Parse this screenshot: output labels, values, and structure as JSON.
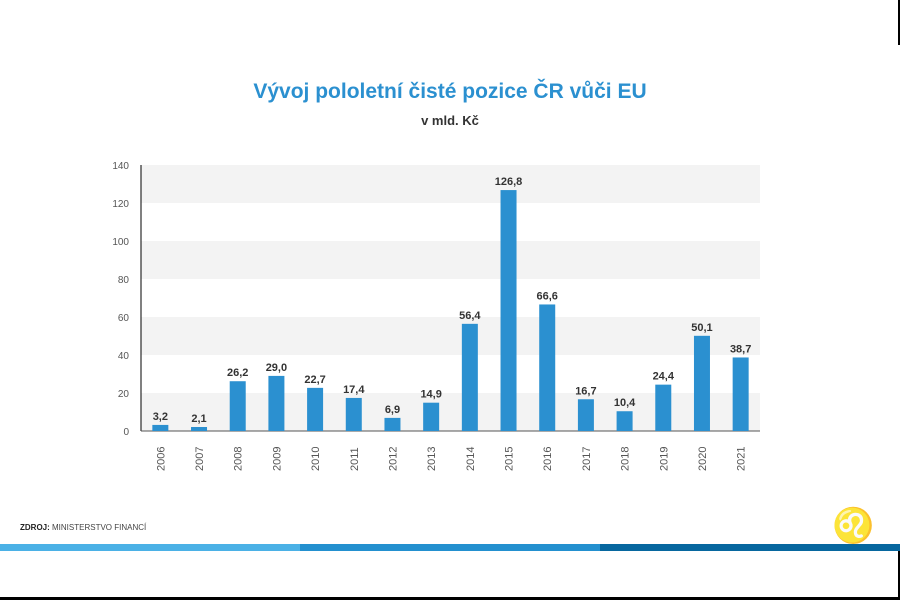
{
  "chart_data": {
    "type": "bar",
    "title": "Vývoj pololetní čisté pozice ČR vůči EU",
    "subtitle": "v mld. Kč",
    "categories": [
      "2006",
      "2007",
      "2008",
      "2009",
      "2010",
      "2011",
      "2012",
      "2013",
      "2014",
      "2015",
      "2016",
      "2017",
      "2018",
      "2019",
      "2020",
      "2021"
    ],
    "values": [
      3.2,
      2.1,
      26.2,
      29.0,
      22.7,
      17.4,
      6.9,
      14.9,
      56.4,
      126.8,
      66.6,
      16.7,
      10.4,
      24.4,
      50.1,
      38.7
    ],
    "labels": [
      "3,2",
      "2,1",
      "26,2",
      "29,0",
      "22,7",
      "17,4",
      "6,9",
      "14,9",
      "56,4",
      "126,8",
      "66,6",
      "16,7",
      "10,4",
      "24,4",
      "50,1",
      "38,7"
    ],
    "ylim": [
      0,
      140
    ],
    "yticks": [
      "0",
      "20",
      "40",
      "60",
      "80",
      "100",
      "120",
      "140"
    ],
    "grid": "alternating horizontal bands",
    "legend": "none",
    "bar_color": "#2b90d0"
  },
  "footer": {
    "source_label": "ZDROJ:",
    "source_value": "MINISTERSTVO FINANCÍ"
  },
  "colors": {
    "strip1": "#4bb1e6",
    "strip2": "#2390cf",
    "strip3": "#07679f"
  }
}
